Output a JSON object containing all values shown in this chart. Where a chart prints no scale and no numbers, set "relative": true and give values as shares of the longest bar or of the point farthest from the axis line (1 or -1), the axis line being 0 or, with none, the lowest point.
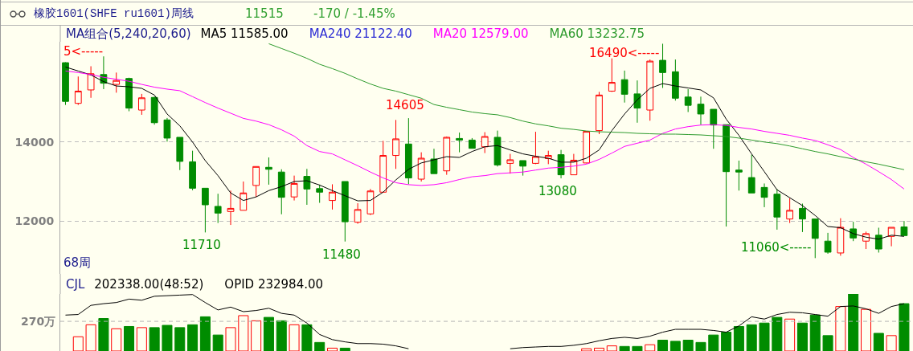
{
  "chart_data": [
    {
      "type": "candlestick",
      "title": "橡胶1601(SHFE ru1601)周线",
      "subtitle": "11515",
      "legend_title": "MA组合(5,240,20,60)",
      "legend": "top left",
      "tick_labels": "y",
      "grid": "y",
      "categories": [
        null,
        null,
        null,
        null,
        null,
        null,
        null,
        null,
        null,
        null,
        null,
        null,
        null,
        null,
        null,
        null,
        null,
        null,
        null,
        null,
        null,
        null,
        null,
        null,
        null,
        null,
        null,
        null,
        null,
        null,
        null,
        null,
        null,
        null,
        null,
        null,
        null,
        null,
        null,
        null,
        null,
        null,
        null,
        null,
        null,
        null,
        null,
        null,
        null,
        null,
        null,
        null,
        null,
        null,
        null,
        null,
        null,
        null,
        null,
        null,
        null,
        null,
        null,
        null,
        null,
        null,
        null
      ],
      "ohlc": [
        [
          16010,
          16020,
          14940,
          15030
        ],
        [
          14980,
          15660,
          14940,
          15290
        ],
        [
          15320,
          15920,
          15120,
          15730
        ],
        [
          15710,
          16170,
          15340,
          15490
        ],
        [
          15460,
          15760,
          15250,
          15560
        ],
        [
          15610,
          15630,
          14780,
          14860
        ],
        [
          14810,
          15220,
          14690,
          15120
        ],
        [
          15130,
          15150,
          14440,
          14490
        ],
        [
          14560,
          14610,
          14010,
          14100
        ],
        [
          14120,
          14120,
          13290,
          13510
        ],
        [
          13500,
          13780,
          12780,
          12830
        ],
        [
          12830,
          12830,
          11710,
          12410
        ],
        [
          12370,
          12690,
          11950,
          12200
        ],
        [
          12240,
          12770,
          11900,
          12320
        ],
        [
          12270,
          13000,
          12270,
          12710
        ],
        [
          12900,
          13380,
          12610,
          13380
        ],
        [
          13360,
          13610,
          12920,
          13310
        ],
        [
          13240,
          13310,
          12170,
          12600
        ],
        [
          12610,
          13150,
          12520,
          12950
        ],
        [
          13130,
          13320,
          12410,
          12810
        ],
        [
          12820,
          12920,
          12460,
          12730
        ],
        [
          12520,
          12930,
          12290,
          12730
        ],
        [
          13000,
          13000,
          11480,
          11980
        ],
        [
          11970,
          12450,
          11930,
          12290
        ],
        [
          12180,
          12810,
          12150,
          12760
        ],
        [
          12730,
          14030,
          12720,
          13660
        ],
        [
          13660,
          14560,
          13320,
          14080
        ],
        [
          13950,
          14605,
          12930,
          13090
        ],
        [
          13060,
          13740,
          13000,
          13590
        ],
        [
          13570,
          13830,
          13200,
          13200
        ],
        [
          13270,
          14140,
          13170,
          14120
        ],
        [
          14090,
          14240,
          13740,
          14050
        ],
        [
          14050,
          14100,
          13840,
          13840
        ],
        [
          13880,
          14250,
          13720,
          14140
        ],
        [
          14120,
          14290,
          13380,
          13420
        ],
        [
          13460,
          13700,
          13200,
          13550
        ],
        [
          13530,
          13530,
          13150,
          13390
        ],
        [
          13460,
          14260,
          13440,
          13630
        ],
        [
          13580,
          13780,
          13440,
          13660
        ],
        [
          13680,
          13800,
          13080,
          13170
        ],
        [
          13170,
          13700,
          13170,
          13540
        ],
        [
          13470,
          14270,
          13460,
          14270
        ],
        [
          14290,
          15270,
          14200,
          15190
        ],
        [
          15290,
          16120,
          15270,
          15510
        ],
        [
          15580,
          15810,
          15000,
          15210
        ],
        [
          15220,
          15560,
          14490,
          14860
        ],
        [
          14810,
          16090,
          14540,
          16050
        ],
        [
          16070,
          16490,
          15370,
          15760
        ],
        [
          15780,
          16090,
          15050,
          15110
        ],
        [
          15140,
          15340,
          14760,
          14930
        ],
        [
          14960,
          15150,
          14440,
          14710
        ],
        [
          14830,
          14830,
          13830,
          14430
        ],
        [
          14440,
          14440,
          11860,
          13250
        ],
        [
          13290,
          13530,
          12770,
          13240
        ],
        [
          13100,
          13680,
          12710,
          12710
        ],
        [
          12850,
          12950,
          12350,
          12600
        ],
        [
          12680,
          12810,
          11780,
          12100
        ],
        [
          12050,
          12580,
          11950,
          12270
        ],
        [
          12320,
          12440,
          11720,
          12050
        ],
        [
          12050,
          12050,
          11060,
          11560
        ],
        [
          11490,
          11700,
          11170,
          11210
        ],
        [
          11190,
          12070,
          11120,
          11840
        ],
        [
          11800,
          11980,
          11490,
          11570
        ],
        [
          11490,
          11730,
          11290,
          11680
        ],
        [
          11640,
          11830,
          11200,
          11290
        ],
        [
          11610,
          11840,
          11360,
          11840
        ],
        [
          11850,
          12000,
          11630,
          11630
        ]
      ],
      "colors": [
        "#008c00",
        "#ff0000",
        "#ff0000",
        "#008c00",
        "#ff0000",
        "#008c00",
        "#ff0000",
        "#008c00",
        "#008c00",
        "#008c00",
        "#008c00",
        "#008c00",
        "#008c00",
        "#ff0000",
        "#ff0000",
        "#ff0000",
        "#008c00",
        "#008c00",
        "#ff0000",
        "#008c00",
        "#008c00",
        "#ff0000",
        "#008c00",
        "#ff0000",
        "#ff0000",
        "#ff0000",
        "#ff0000",
        "#008c00",
        "#ff0000",
        "#008c00",
        "#ff0000",
        "#008c00",
        "#008c00",
        "#ff0000",
        "#008c00",
        "#ff0000",
        "#008c00",
        "#ff0000",
        "#ff0000",
        "#008c00",
        "#ff0000",
        "#ff0000",
        "#ff0000",
        "#ff0000",
        "#008c00",
        "#008c00",
        "#ff0000",
        "#008c00",
        "#008c00",
        "#008c00",
        "#008c00",
        "#008c00",
        "#008c00",
        "#008c00",
        "#008c00",
        "#008c00",
        "#008c00",
        "#ff0000",
        "#008c00",
        "#008c00",
        "#008c00",
        "#ff0000",
        "#008c00",
        "#ff0000",
        "#008c00",
        "#ff0000",
        "#008c00"
      ],
      "series": [
        {
          "name": "MA5 11585.00",
          "type": "line",
          "color": "#000000",
          "values": [
            15900,
            15800,
            15700,
            15530,
            15420,
            15400,
            15360,
            15190,
            14710,
            14410,
            14000,
            13530,
            13150,
            12710,
            12520,
            12610,
            12770,
            12870,
            13000,
            13020,
            12910,
            12770,
            12640,
            12510,
            12520,
            12730,
            13040,
            13310,
            13470,
            13550,
            13630,
            13610,
            13760,
            13880,
            13910,
            13800,
            13700,
            13640,
            13590,
            13490,
            13490,
            13590,
            13800,
            14290,
            14710,
            15070,
            15360,
            15480,
            15420,
            15370,
            15320,
            15120,
            14580,
            14170,
            13700,
            13250,
            12790,
            12590,
            12390,
            12140,
            11860,
            11830,
            11680,
            11590,
            11540,
            11640,
            11610
          ]
        },
        {
          "name": "MA240 21122.40",
          "type": "line",
          "color": "#2b2bd4",
          "values": [
            null,
            null,
            null,
            null,
            null,
            null,
            null,
            null,
            null,
            null,
            null,
            null,
            null,
            null,
            null,
            null,
            null,
            null,
            null,
            null,
            null,
            null,
            null,
            null,
            null,
            null,
            null,
            null,
            null,
            null,
            null,
            null,
            null,
            null,
            null,
            null,
            null,
            null,
            null,
            null,
            null,
            null,
            null,
            null,
            null,
            null,
            null,
            null,
            null,
            null,
            null,
            null,
            null,
            null,
            null,
            null,
            null,
            null,
            null,
            null,
            null,
            null,
            null,
            null,
            null,
            null,
            null
          ]
        },
        {
          "name": "MA20 12579.00",
          "type": "line",
          "color": "#ff00ff",
          "values": [
            15800,
            15760,
            15710,
            15640,
            15590,
            15540,
            15460,
            15390,
            15340,
            15300,
            15150,
            15000,
            14860,
            14730,
            14600,
            14530,
            14440,
            14310,
            14150,
            13910,
            13760,
            13700,
            13550,
            13400,
            13240,
            13090,
            12970,
            12920,
            12900,
            12920,
            12970,
            13050,
            13120,
            13150,
            13200,
            13220,
            13240,
            13290,
            13340,
            13360,
            13390,
            13440,
            13560,
            13720,
            13890,
            13970,
            14050,
            14220,
            14330,
            14390,
            14430,
            14440,
            14420,
            14370,
            14330,
            14270,
            14220,
            14170,
            14100,
            14040,
            13930,
            13810,
            13610,
            13440,
            13250,
            13050,
            12810
          ]
        },
        {
          "name": "MA60 13232.75",
          "type": "line",
          "color": "#2e9b2e",
          "values": [
            null,
            null,
            null,
            null,
            null,
            null,
            null,
            null,
            null,
            null,
            null,
            null,
            null,
            null,
            null,
            null,
            16490,
            16370,
            16250,
            16120,
            15970,
            15860,
            15740,
            15600,
            15470,
            15360,
            15290,
            15200,
            15110,
            14950,
            14880,
            14820,
            14760,
            14720,
            14690,
            14620,
            14530,
            14460,
            14410,
            14350,
            14320,
            14280,
            14260,
            14250,
            14240,
            14220,
            14210,
            14200,
            14200,
            14190,
            14180,
            14160,
            14140,
            14100,
            14050,
            14000,
            13960,
            13900,
            13830,
            13760,
            13700,
            13630,
            13570,
            13500,
            13440,
            13370,
            13300
          ]
        }
      ],
      "ylim": [
        10660,
        16540
      ],
      "yticks": [
        12000,
        14000
      ],
      "annotations": [
        "-170 / -1.45%",
        "5<-----",
        "68周",
        "16490<-----",
        "11060<-----",
        {
          "text": "14605",
          "y": 14605
        },
        {
          "text": "13080",
          "y": 13080
        },
        {
          "text": "11710",
          "y": 11710
        },
        {
          "text": "11480",
          "y": 11480
        }
      ]
    },
    {
      "type": "bar",
      "relative": true,
      "title": "CJL",
      "subtitle": "202338.00(48:52)",
      "legend": "top left",
      "tick_labels": false,
      "categories": [
        null,
        null,
        null,
        null,
        null,
        null,
        null,
        null,
        null,
        null,
        null,
        null,
        null,
        null,
        null,
        null,
        null,
        null,
        null,
        null,
        null,
        null,
        null,
        null,
        null,
        null,
        null,
        null,
        null,
        null,
        null,
        null,
        null,
        null,
        null,
        null,
        null,
        null,
        null,
        null,
        null,
        null,
        null,
        null,
        null,
        null,
        null,
        null,
        null,
        null,
        null,
        null,
        null,
        null,
        null,
        null,
        null,
        null,
        null,
        null,
        null,
        null,
        null,
        null,
        null,
        null,
        null
      ],
      "series": [
        {
          "colors": [
            null,
            "#ff0000",
            "#ff0000",
            "#008c00",
            "#ff0000",
            "#008c00",
            "#ff0000",
            "#008c00",
            "#008c00",
            "#008c00",
            "#008c00",
            "#008c00",
            "#008c00",
            "#ff0000",
            "#ff0000",
            "#ff0000",
            "#008c00",
            "#008c00",
            "#ff0000",
            "#008c00",
            "#008c00",
            "#ff0000",
            "#008c00",
            null,
            null,
            null,
            null,
            null,
            null,
            null,
            null,
            null,
            null,
            null,
            null,
            null,
            null,
            null,
            null,
            null,
            null,
            "#ff0000",
            "#ff0000",
            "#ff0000",
            "#008c00",
            "#008c00",
            "#ff0000",
            "#008c00",
            "#008c00",
            "#008c00",
            "#008c00",
            "#008c00",
            "#008c00",
            "#008c00",
            "#008c00",
            "#008c00",
            "#008c00",
            "#ff0000",
            "#008c00",
            "#008c00",
            "#008c00",
            "#ff0000",
            "#008c00",
            "#ff0000",
            "#008c00",
            "#ff0000",
            "#008c00"
          ],
          "values": [
            null,
            0.25,
            0.46,
            0.57,
            0.39,
            0.43,
            0.41,
            0.41,
            0.45,
            0.41,
            0.46,
            0.6,
            0.28,
            0.41,
            0.62,
            0.53,
            0.59,
            0.53,
            0.46,
            0.46,
            0.15,
            0.05,
            0.05,
            null,
            null,
            null,
            null,
            null,
            null,
            null,
            null,
            null,
            null,
            null,
            null,
            null,
            null,
            null,
            null,
            null,
            null,
            0.04,
            0.05,
            0.09,
            0.08,
            0.08,
            0.11,
            0.19,
            0.17,
            0.19,
            0.15,
            0.28,
            0.33,
            0.43,
            0.46,
            0.49,
            0.59,
            0.56,
            0.49,
            0.63,
            0.27,
            0.78,
            1,
            0.73,
            0.31,
            0.27,
            0.83
          ]
        },
        {
          "name": "OPID 232984.00",
          "type": "line",
          "color": "#000000",
          "values": [
            0.63,
            0.64,
            0.8,
            0.83,
            0.85,
            0.91,
            0.89,
            0.96,
            0.97,
            0.98,
            0.99,
            0.85,
            0.72,
            0.77,
            0.69,
            0.71,
            0.75,
            0.66,
            0.63,
            0.49,
            0.29,
            0.2,
            0.16,
            0.13,
            0.13,
            0.12,
            0.09,
            0.04,
            null,
            null,
            null,
            null,
            null,
            null,
            null,
            0.04,
            0.06,
            0.07,
            0.08,
            0.08,
            0.1,
            0.13,
            0.18,
            0.22,
            0.24,
            0.22,
            0.26,
            0.33,
            0.38,
            0.38,
            0.38,
            0.36,
            0.33,
            0.44,
            0.6,
            0.56,
            0.64,
            0.68,
            0.67,
            0.64,
            0.61,
            0.78,
            0.79,
            0.74,
            0.66,
            0.78,
            0.83
          ]
        }
      ],
      "ref_lines": [
        {
          "axis": "y",
          "value": 0.52,
          "label": "270万",
          "line_style": "dashed",
          "color": "#b4b4b4"
        }
      ]
    }
  ]
}
